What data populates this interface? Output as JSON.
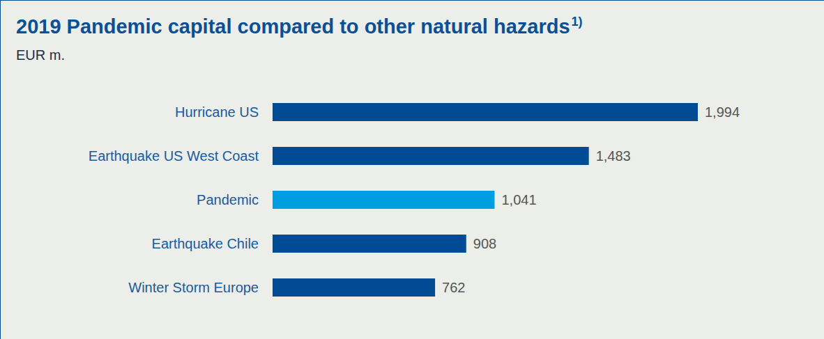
{
  "chart_data": {
    "type": "bar",
    "title": "2019 Pandemic capital compared to other natural hazards",
    "title_superscript": "1)",
    "subtitle": "EUR m.",
    "orientation": "horizontal",
    "categories": [
      "Hurricane US",
      "Earthquake US West Coast",
      "Pandemic",
      "Earthquake Chile",
      "Winter Storm Europe"
    ],
    "values": [
      1994,
      1483,
      1041,
      908,
      762
    ],
    "value_labels": [
      "1,994",
      "1,483",
      "1,041",
      "908",
      "762"
    ],
    "colors": [
      "#004b93",
      "#004b93",
      "#009ee0",
      "#004b93",
      "#004b93"
    ],
    "data_labels": true,
    "tick_labels": "y",
    "grid": false
  }
}
